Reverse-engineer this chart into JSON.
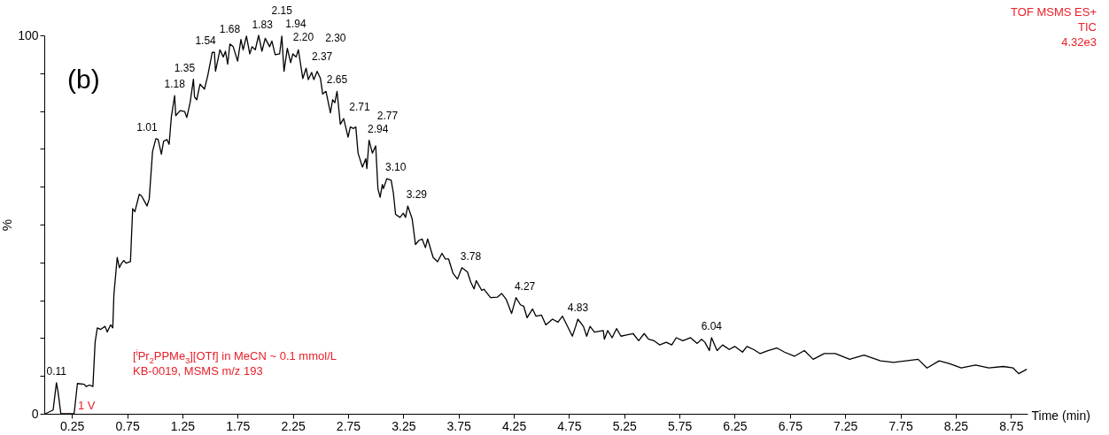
{
  "chart_data": {
    "type": "line",
    "xlabel": "Time (min)",
    "ylabel": "%",
    "xlim": [
      0,
      8.9
    ],
    "ylim": [
      0,
      100
    ],
    "xticks": [
      0.25,
      0.75,
      1.25,
      1.75,
      2.25,
      2.75,
      3.25,
      3.75,
      4.25,
      4.75,
      5.25,
      5.75,
      6.25,
      6.75,
      7.25,
      7.75,
      8.25,
      8.75
    ],
    "yticks": [
      0,
      {
        "value": 10,
        "label": null
      },
      {
        "value": 20,
        "label": null
      },
      {
        "value": 30,
        "label": null
      },
      {
        "value": 40,
        "label": null
      },
      {
        "value": 50,
        "label": null
      },
      {
        "value": 60,
        "label": null
      },
      {
        "value": 70,
        "label": null
      },
      {
        "value": 80,
        "label": null
      },
      {
        "value": 90,
        "label": null
      },
      100
    ],
    "grid": false,
    "legend": false,
    "marker": "none",
    "line_style": "solid",
    "x": [
      0.01,
      0.08,
      0.11,
      0.125,
      0.15,
      0.27,
      0.3,
      0.36,
      0.38,
      0.41,
      0.44,
      0.46,
      0.48,
      0.51,
      0.55,
      0.57,
      0.6,
      0.62,
      0.63,
      0.66,
      0.68,
      0.7,
      0.72,
      0.74,
      0.78,
      0.8,
      0.82,
      0.86,
      0.88,
      0.91,
      0.93,
      0.95,
      0.98,
      1.01,
      1.03,
      1.06,
      1.08,
      1.11,
      1.13,
      1.15,
      1.18,
      1.19,
      1.23,
      1.27,
      1.29,
      1.32,
      1.35,
      1.36,
      1.38,
      1.41,
      1.45,
      1.48,
      1.52,
      1.54,
      1.55,
      1.59,
      1.62,
      1.64,
      1.66,
      1.68,
      1.71,
      1.75,
      1.78,
      1.8,
      1.83,
      1.86,
      1.88,
      1.91,
      1.94,
      1.97,
      2.0,
      2.04,
      2.06,
      2.09,
      2.13,
      2.15,
      2.17,
      2.2,
      2.23,
      2.25,
      2.28,
      2.3,
      2.34,
      2.37,
      2.39,
      2.42,
      2.44,
      2.47,
      2.5,
      2.52,
      2.55,
      2.59,
      2.61,
      2.63,
      2.65,
      2.68,
      2.71,
      2.75,
      2.77,
      2.8,
      2.82,
      2.84,
      2.88,
      2.91,
      2.92,
      2.94,
      2.97,
      3.0,
      3.02,
      3.04,
      3.06,
      3.07,
      3.1,
      3.14,
      3.16,
      3.18,
      3.22,
      3.25,
      3.27,
      3.29,
      3.33,
      3.36,
      3.39,
      3.42,
      3.45,
      3.47,
      3.52,
      3.56,
      3.6,
      3.63,
      3.66,
      3.7,
      3.74,
      3.76,
      3.78,
      3.83,
      3.86,
      3.89,
      3.91,
      3.96,
      3.98,
      4.04,
      4.1,
      4.14,
      4.18,
      4.23,
      4.27,
      4.31,
      4.34,
      4.37,
      4.42,
      4.45,
      4.5,
      4.54,
      4.6,
      4.65,
      4.69,
      4.73,
      4.78,
      4.81,
      4.83,
      4.88,
      4.91,
      4.94,
      4.98,
      5.06,
      5.07,
      5.1,
      5.14,
      5.18,
      5.22,
      5.27,
      5.33,
      5.38,
      5.43,
      5.47,
      5.52,
      5.57,
      5.63,
      5.68,
      5.72,
      5.78,
      5.85,
      5.91,
      5.95,
      5.98,
      6.02,
      6.04,
      6.09,
      6.14,
      6.2,
      6.25,
      6.32,
      6.36,
      6.42,
      6.48,
      6.55,
      6.63,
      6.7,
      6.79,
      6.88,
      6.96,
      7.06,
      7.16,
      7.29,
      7.42,
      7.57,
      7.69,
      7.8,
      7.91,
      7.99,
      8.1,
      8.19,
      8.3,
      8.43,
      8.55,
      8.68,
      8.77,
      8.82,
      8.89
    ],
    "series": [
      {
        "color": "#000000",
        "values": [
          0,
          1,
          8.2,
          5.7,
          0,
          0,
          8,
          7.8,
          7.2,
          7.6,
          7.2,
          18.9,
          22.7,
          22.3,
          23.1,
          21.6,
          23.5,
          22.7,
          31.4,
          41.3,
          38.6,
          39.8,
          40.5,
          39.8,
          40.2,
          54.2,
          53.4,
          58,
          57.6,
          56,
          54.9,
          56.8,
          69.3,
          72.7,
          72.5,
          68.6,
          72,
          72.5,
          71.2,
          78.4,
          84.1,
          78.8,
          80.1,
          79.9,
          78.3,
          82.2,
          88.4,
          83.7,
          83,
          87.1,
          85.8,
          89.4,
          95.5,
          95.5,
          90.5,
          96.2,
          94.3,
          95.8,
          92.4,
          97.7,
          97,
          93.2,
          98.9,
          96.2,
          99.8,
          95.1,
          97,
          96.2,
          100,
          95.8,
          99.2,
          97,
          98.5,
          94.9,
          95.1,
          99.8,
          90.5,
          96.6,
          92.8,
          95.1,
          94.3,
          96.2,
          88.6,
          91.3,
          88.3,
          90.2,
          88.3,
          90.5,
          88.6,
          84.5,
          85.2,
          79.5,
          83,
          82.2,
          85.2,
          76.5,
          78,
          73.1,
          75.8,
          75.4,
          75.8,
          68.9,
          65.2,
          67.4,
          64.8,
          72.3,
          68.9,
          70.8,
          59.5,
          57.2,
          60.6,
          59.5,
          62.1,
          61.7,
          58.3,
          52.7,
          51.9,
          53,
          51.9,
          54.9,
          51.5,
          44.7,
          45.8,
          46.2,
          43.9,
          46.2,
          41.3,
          40.2,
          42.4,
          40.9,
          40.9,
          37.1,
          35.6,
          37.1,
          38.6,
          37.5,
          34.8,
          33,
          35.2,
          32.6,
          32.9,
          30.7,
          30.8,
          31.8,
          30.3,
          26.5,
          30.7,
          28.8,
          28.4,
          25.4,
          27.7,
          25.8,
          26.1,
          23.5,
          25,
          24.2,
          25.8,
          23.5,
          20.5,
          23.1,
          25,
          23.1,
          20.5,
          23.1,
          21.6,
          22,
          19.7,
          22,
          20.1,
          22.5,
          20.5,
          20.8,
          21.2,
          19.3,
          21.2,
          19.7,
          19.3,
          18.2,
          18.9,
          18.2,
          20.1,
          19.3,
          20.1,
          18.6,
          19.7,
          18.9,
          16.7,
          20.1,
          16.7,
          18.2,
          17,
          17.8,
          16.3,
          17.8,
          17,
          15.9,
          16.7,
          17.4,
          16.3,
          15.2,
          16.7,
          14.4,
          15.9,
          15.9,
          14.4,
          15.5,
          14,
          13.6,
          14,
          14.4,
          12.1,
          14,
          13.3,
          12.1,
          12.9,
          12.1,
          12.5,
          12.1,
          10.6,
          11.7
        ]
      }
    ],
    "annotations": [
      "(b)",
      "TOF MSMS ES+",
      "TIC",
      "4.32e3",
      "[$^{i}$Pr$_{2}$PPMe$_{3}$][OTf] in MeCN ~ 0.1 mmol/L",
      "KB-0019, MSMS m/z 193",
      "1 V",
      {
        "text": "0.11",
        "x": 0.11,
        "y": 8.2
      },
      {
        "text": "1.01",
        "x": 1.01,
        "y": 72.7
      },
      {
        "text": "1.18",
        "x": 1.18,
        "y": 84.1
      },
      {
        "text": "1.35",
        "x": 1.35,
        "y": 88.4
      },
      {
        "text": "1.54",
        "x": 1.54,
        "y": 95.5
      },
      {
        "text": "1.68",
        "x": 1.68,
        "y": 97.7
      },
      {
        "text": "1.83",
        "x": 1.83,
        "y": 99.8
      },
      {
        "text": "1.94",
        "x": 1.94,
        "y": 100
      },
      {
        "text": "2.15",
        "x": 2.15,
        "y": 99.8
      },
      {
        "text": "2.20",
        "x": 2.2,
        "y": 96.6
      },
      {
        "text": "2.30",
        "x": 2.3,
        "y": 96.2
      },
      {
        "text": "2.37",
        "x": 2.37,
        "y": 91.3
      },
      {
        "text": "2.65",
        "x": 2.65,
        "y": 85.2
      },
      {
        "text": "2.71",
        "x": 2.71,
        "y": 78
      },
      {
        "text": "2.77",
        "x": 2.77,
        "y": 75.8
      },
      {
        "text": "2.94",
        "x": 2.94,
        "y": 72.3
      },
      {
        "text": "3.10",
        "x": 3.1,
        "y": 62.1
      },
      {
        "text": "3.29",
        "x": 3.29,
        "y": 54.9
      },
      {
        "text": "3.78",
        "x": 3.78,
        "y": 38.6
      },
      {
        "text": "4.27",
        "x": 4.27,
        "y": 30.7
      },
      {
        "text": "4.83",
        "x": 4.83,
        "y": 25
      },
      {
        "text": "6.04",
        "x": 6.04,
        "y": 20.1
      }
    ]
  }
}
